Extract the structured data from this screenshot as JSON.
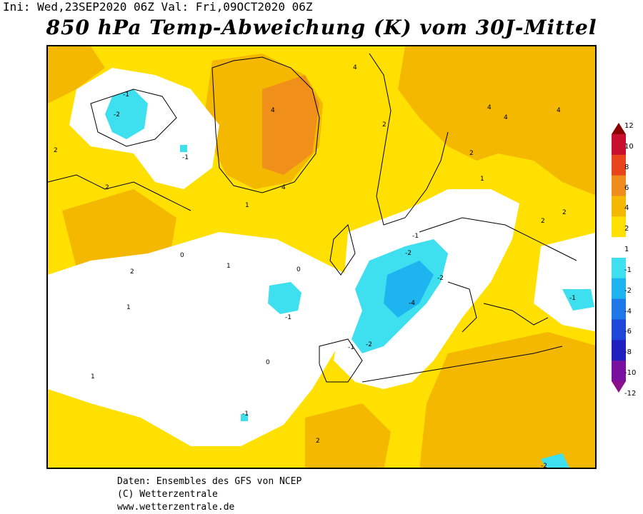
{
  "header": {
    "init": "Ini: Wed,23SEP2020 06Z Val: Fri,09OCT2020 06Z",
    "title": "850 hPa Temp-Abweichung (K) vom 30J-Mittel"
  },
  "legend": {
    "levels": [
      "12",
      "10",
      "8",
      "6",
      "4",
      "2",
      "1",
      "-1",
      "-2",
      "-4",
      "-6",
      "-8",
      "-10",
      "-12"
    ],
    "colors": [
      "#8b0000",
      "#c8102e",
      "#e8451c",
      "#f08c1e",
      "#f5b800",
      "#ffe000",
      "#ffffff",
      "#3ee0f0",
      "#1eb4f0",
      "#1e78e8",
      "#1e46d8",
      "#2020c0",
      "#7a10a0",
      "#8a0f8a"
    ]
  },
  "map": {
    "contour_labels": [
      "-1",
      "-2",
      "-1",
      "-2",
      "-2",
      "-1",
      "-1",
      "-2",
      "-4",
      "-1",
      "-1",
      "-2",
      "-1",
      "1",
      "1",
      "1",
      "1",
      "1",
      "2",
      "2",
      "2",
      "2",
      "2",
      "2",
      "2",
      "2",
      "4",
      "4",
      "4",
      "4",
      "4",
      "4",
      "0",
      "0",
      "0"
    ],
    "colors": {
      "yellow": "#ffe000",
      "orange_light": "#f5b800",
      "orange": "#f08c1e",
      "white": "#ffffff",
      "cyan": "#3ee0f0",
      "blue_light": "#1eb4f0"
    }
  },
  "credits": {
    "line1": "Daten: Ensembles des GFS von NCEP",
    "line2": "(C) Wetterzentrale",
    "line3": "www.wetterzentrale.de"
  }
}
